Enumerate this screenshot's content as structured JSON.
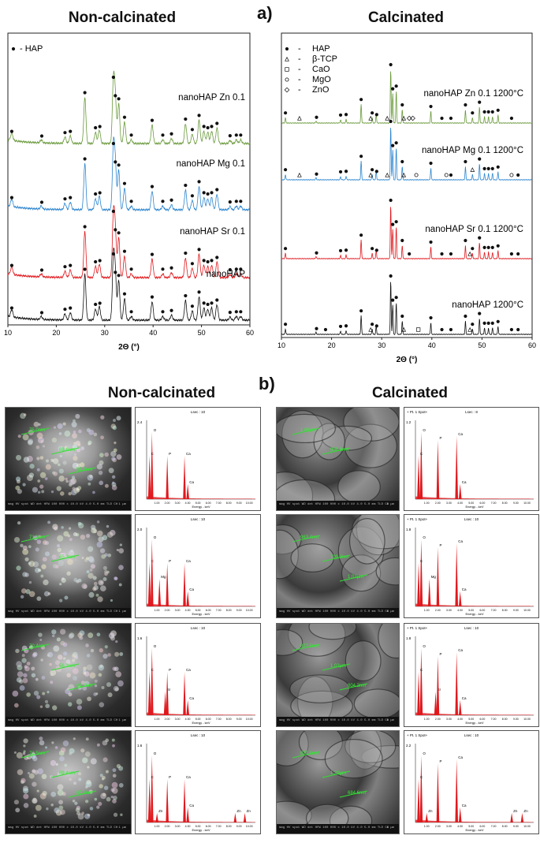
{
  "figure": {
    "panel_a_label": "a)",
    "panel_b_label": "b)",
    "left_heading": "Non-calcinated",
    "right_heading": "Calcinated"
  },
  "colors": {
    "black": "#111111",
    "red": "#e0191e",
    "blue": "#2e86cf",
    "green": "#6a9a3c"
  },
  "chart_data": [
    {
      "type": "line",
      "panel": "a-left",
      "xlabel": "2Θ (°)",
      "ylabel": "",
      "xlim": [
        10,
        60
      ],
      "xticks": [
        10,
        20,
        30,
        40,
        50,
        60
      ],
      "legend": {
        "placement": "top-left",
        "entries": [
          {
            "marker": "●",
            "label": "- HAP"
          }
        ]
      },
      "series": [
        {
          "name": "nanoHAP Zn 0.1",
          "color": "#6a9a3c",
          "hap_markers": [
            10.8,
            17,
            21.8,
            22.9,
            25.9,
            28.1,
            29,
            31.8,
            32.2,
            32.9,
            34.1,
            35.5,
            39.8,
            42,
            43.8,
            46.7,
            48.1,
            49.5,
            50.5,
            51.3,
            52.1,
            53.2,
            55.9,
            57.2,
            58.1
          ]
        },
        {
          "name": "nanoHAP Mg 0.1",
          "color": "#2e86cf",
          "hap_markers": [
            10.8,
            17,
            21.8,
            22.9,
            25.9,
            28.1,
            29,
            31.8,
            32.2,
            32.9,
            34.1,
            35.5,
            39.8,
            42,
            43.8,
            46.7,
            48.1,
            49.5,
            50.5,
            51.3,
            52.1,
            53.2,
            55.9,
            57.2,
            58.1
          ]
        },
        {
          "name": "nanoHAP Sr 0.1",
          "color": "#e0191e",
          "hap_markers": [
            10.8,
            17,
            21.8,
            22.9,
            25.9,
            28.1,
            29,
            31.8,
            32.2,
            32.9,
            34.1,
            35.5,
            39.8,
            42,
            43.8,
            46.7,
            48.1,
            49.5,
            50.5,
            51.3,
            52.1,
            53.2,
            55.9,
            57.2,
            58.1
          ]
        },
        {
          "name": "nanoHAP",
          "color": "#111111",
          "hap_markers": [
            10.8,
            17,
            21.8,
            22.9,
            25.9,
            28.1,
            29,
            31.8,
            32.2,
            32.9,
            34.1,
            35.5,
            39.8,
            42,
            43.8,
            46.7,
            48.1,
            49.5,
            50.5,
            51.3,
            52.1,
            53.2,
            55.9,
            57.2,
            58.1
          ]
        }
      ],
      "peaks": [
        {
          "x": 10.8,
          "i": 0.12
        },
        {
          "x": 16.9,
          "i": 0.05
        },
        {
          "x": 21.8,
          "i": 0.1
        },
        {
          "x": 22.9,
          "i": 0.12
        },
        {
          "x": 25.9,
          "i": 0.75
        },
        {
          "x": 28.1,
          "i": 0.18
        },
        {
          "x": 28.9,
          "i": 0.22
        },
        {
          "x": 31.8,
          "i": 1.0
        },
        {
          "x": 32.2,
          "i": 0.7
        },
        {
          "x": 32.9,
          "i": 0.65
        },
        {
          "x": 34.1,
          "i": 0.35
        },
        {
          "x": 35.5,
          "i": 0.06
        },
        {
          "x": 39.8,
          "i": 0.3
        },
        {
          "x": 42.0,
          "i": 0.06
        },
        {
          "x": 43.8,
          "i": 0.08
        },
        {
          "x": 46.7,
          "i": 0.32
        },
        {
          "x": 48.1,
          "i": 0.15
        },
        {
          "x": 49.5,
          "i": 0.38
        },
        {
          "x": 50.5,
          "i": 0.2
        },
        {
          "x": 51.3,
          "i": 0.18
        },
        {
          "x": 52.1,
          "i": 0.2
        },
        {
          "x": 53.2,
          "i": 0.25
        },
        {
          "x": 55.9,
          "i": 0.05
        },
        {
          "x": 57.2,
          "i": 0.06
        },
        {
          "x": 58.1,
          "i": 0.06
        }
      ]
    },
    {
      "type": "line",
      "panel": "a-right",
      "xlabel": "2Θ (°)",
      "ylabel": "",
      "xlim": [
        10,
        60
      ],
      "xticks": [
        10,
        20,
        30,
        40,
        50,
        60
      ],
      "legend": {
        "placement": "top-left",
        "entries": [
          {
            "marker": "●",
            "dash": "-",
            "label": "HAP"
          },
          {
            "marker": "△",
            "dash": "-",
            "label": "β-TCP"
          },
          {
            "marker": "□",
            "dash": "-",
            "label": "CaO"
          },
          {
            "marker": "○",
            "dash": "-",
            "label": "MgO"
          },
          {
            "marker": "◇",
            "dash": "-",
            "label": "ZnO"
          }
        ]
      },
      "series": [
        {
          "name": "nanoHAP Zn 0.1 1200°C",
          "color": "#6a9a3c",
          "markers": [
            {
              "x": 10.8,
              "m": "●"
            },
            {
              "x": 13.6,
              "m": "△"
            },
            {
              "x": 17,
              "m": "●"
            },
            {
              "x": 21.8,
              "m": "●"
            },
            {
              "x": 22.9,
              "m": "●"
            },
            {
              "x": 25.9,
              "m": "●"
            },
            {
              "x": 27.8,
              "m": "△"
            },
            {
              "x": 28.1,
              "m": "●"
            },
            {
              "x": 29,
              "m": "●"
            },
            {
              "x": 31.1,
              "m": "△"
            },
            {
              "x": 31.8,
              "m": "●"
            },
            {
              "x": 32.2,
              "m": "●"
            },
            {
              "x": 32.9,
              "m": "●"
            },
            {
              "x": 34.1,
              "m": "●"
            },
            {
              "x": 34.4,
              "m": "△"
            },
            {
              "x": 35.5,
              "m": "◇"
            },
            {
              "x": 36.2,
              "m": "◇"
            },
            {
              "x": 39.8,
              "m": "●"
            },
            {
              "x": 42,
              "m": "●"
            },
            {
              "x": 43.8,
              "m": "●"
            },
            {
              "x": 46.7,
              "m": "●"
            },
            {
              "x": 48.1,
              "m": "●"
            },
            {
              "x": 49.5,
              "m": "●"
            },
            {
              "x": 50.5,
              "m": "●"
            },
            {
              "x": 51.3,
              "m": "●"
            },
            {
              "x": 52.1,
              "m": "●"
            },
            {
              "x": 53.2,
              "m": "●"
            },
            {
              "x": 55.9,
              "m": "●"
            }
          ]
        },
        {
          "name": "nanoHAP Mg 0.1 1200°C",
          "color": "#2e86cf",
          "markers": [
            {
              "x": 10.8,
              "m": "●"
            },
            {
              "x": 13.6,
              "m": "△"
            },
            {
              "x": 17,
              "m": "●"
            },
            {
              "x": 21.8,
              "m": "●"
            },
            {
              "x": 22.9,
              "m": "●"
            },
            {
              "x": 25.9,
              "m": "●"
            },
            {
              "x": 27.8,
              "m": "△"
            },
            {
              "x": 28.1,
              "m": "●"
            },
            {
              "x": 29,
              "m": "●"
            },
            {
              "x": 31.1,
              "m": "△"
            },
            {
              "x": 31.8,
              "m": "●"
            },
            {
              "x": 32.2,
              "m": "●"
            },
            {
              "x": 32.9,
              "m": "●"
            },
            {
              "x": 34.1,
              "m": "●"
            },
            {
              "x": 34.4,
              "m": "△"
            },
            {
              "x": 36.9,
              "m": "○"
            },
            {
              "x": 39.8,
              "m": "●"
            },
            {
              "x": 42.9,
              "m": "○"
            },
            {
              "x": 43.8,
              "m": "●"
            },
            {
              "x": 46.7,
              "m": "●"
            },
            {
              "x": 48.1,
              "m": "△"
            },
            {
              "x": 49.5,
              "m": "●"
            },
            {
              "x": 50.5,
              "m": "●"
            },
            {
              "x": 51.3,
              "m": "●"
            },
            {
              "x": 52.1,
              "m": "●"
            },
            {
              "x": 53.2,
              "m": "●"
            },
            {
              "x": 55.9,
              "m": "○"
            },
            {
              "x": 57.2,
              "m": "●"
            }
          ]
        },
        {
          "name": "nanoHAP Sr 0.1 1200°C",
          "color": "#e0191e",
          "markers": [
            {
              "x": 10.8,
              "m": "●"
            },
            {
              "x": 17,
              "m": "●"
            },
            {
              "x": 21.8,
              "m": "●"
            },
            {
              "x": 22.9,
              "m": "●"
            },
            {
              "x": 25.9,
              "m": "●"
            },
            {
              "x": 28.1,
              "m": "●"
            },
            {
              "x": 29,
              "m": "●"
            },
            {
              "x": 31.8,
              "m": "●"
            },
            {
              "x": 32.2,
              "m": "●"
            },
            {
              "x": 32.9,
              "m": "●"
            },
            {
              "x": 34.1,
              "m": "●"
            },
            {
              "x": 35.5,
              "m": "●"
            },
            {
              "x": 39.8,
              "m": "●"
            },
            {
              "x": 42,
              "m": "●"
            },
            {
              "x": 43.8,
              "m": "●"
            },
            {
              "x": 46.7,
              "m": "●"
            },
            {
              "x": 47.6,
              "m": "△"
            },
            {
              "x": 48.1,
              "m": "●"
            },
            {
              "x": 49.5,
              "m": "●"
            },
            {
              "x": 50.5,
              "m": "●"
            },
            {
              "x": 51.3,
              "m": "●"
            },
            {
              "x": 52.1,
              "m": "●"
            },
            {
              "x": 53.2,
              "m": "●"
            },
            {
              "x": 55.9,
              "m": "●"
            },
            {
              "x": 57.2,
              "m": "●"
            }
          ]
        },
        {
          "name": "nanoHAP 1200°C",
          "color": "#111111",
          "markers": [
            {
              "x": 10.8,
              "m": "●"
            },
            {
              "x": 17,
              "m": "●"
            },
            {
              "x": 18.8,
              "m": "●"
            },
            {
              "x": 21.8,
              "m": "●"
            },
            {
              "x": 22.9,
              "m": "●"
            },
            {
              "x": 25.9,
              "m": "●"
            },
            {
              "x": 27.8,
              "m": "△"
            },
            {
              "x": 28.1,
              "m": "●"
            },
            {
              "x": 29,
              "m": "●"
            },
            {
              "x": 31.8,
              "m": "●"
            },
            {
              "x": 32.2,
              "m": "●"
            },
            {
              "x": 32.9,
              "m": "●"
            },
            {
              "x": 34.1,
              "m": "●"
            },
            {
              "x": 34.4,
              "m": "△"
            },
            {
              "x": 37.3,
              "m": "□"
            },
            {
              "x": 39.8,
              "m": "●"
            },
            {
              "x": 42,
              "m": "●"
            },
            {
              "x": 43.8,
              "m": "●"
            },
            {
              "x": 46.7,
              "m": "●"
            },
            {
              "x": 47.6,
              "m": "△"
            },
            {
              "x": 48.1,
              "m": "●"
            },
            {
              "x": 49.5,
              "m": "●"
            },
            {
              "x": 50.5,
              "m": "●"
            },
            {
              "x": 51.3,
              "m": "●"
            },
            {
              "x": 52.1,
              "m": "●"
            },
            {
              "x": 53.2,
              "m": "●"
            },
            {
              "x": 55.9,
              "m": "●"
            },
            {
              "x": 57.2,
              "m": "●"
            }
          ]
        }
      ],
      "peaks": [
        {
          "x": 10.8,
          "i": 0.1
        },
        {
          "x": 16.9,
          "i": 0.04
        },
        {
          "x": 21.8,
          "i": 0.06
        },
        {
          "x": 22.9,
          "i": 0.07
        },
        {
          "x": 25.9,
          "i": 0.35
        },
        {
          "x": 28.1,
          "i": 0.1
        },
        {
          "x": 28.9,
          "i": 0.15
        },
        {
          "x": 31.8,
          "i": 1.0
        },
        {
          "x": 32.2,
          "i": 0.55
        },
        {
          "x": 32.9,
          "i": 0.6
        },
        {
          "x": 34.1,
          "i": 0.25
        },
        {
          "x": 39.8,
          "i": 0.22
        },
        {
          "x": 46.7,
          "i": 0.25
        },
        {
          "x": 48.1,
          "i": 0.1
        },
        {
          "x": 49.5,
          "i": 0.3
        },
        {
          "x": 50.5,
          "i": 0.12
        },
        {
          "x": 51.3,
          "i": 0.12
        },
        {
          "x": 52.1,
          "i": 0.12
        },
        {
          "x": 53.2,
          "i": 0.15
        }
      ]
    }
  ],
  "sem": {
    "scale_label": "1 μm",
    "info_text": "mag  HV  spot  WD  det  HFW  100 000 x  10.0 kV  4.0  5.0 mm  TLD  CH",
    "noncalcinated": [
      "nanoHAP Zn 0.1",
      "nanoHAP Mg 0.1",
      "nanoHAP Sr 0.1",
      "nanoHAP"
    ],
    "calcinated_sizes": [
      [
        "1.08μm",
        "908.9nm"
      ],
      [
        "963.4nm",
        "709.0nm",
        "1.03μm"
      ],
      [
        "877.0nm",
        "1.03μm",
        "804.2nm"
      ],
      [
        "877.0nm",
        "1.29μm",
        "684.6nm"
      ]
    ],
    "noncalcinated_sizes": [
      [
        "75.0nm",
        "68.6nm",
        "58.2nm"
      ],
      [
        "71.2nm",
        "65.3nm"
      ],
      [
        "70.4nm",
        "56.3nm",
        "61.0nm"
      ],
      [
        "72.5nm",
        "69.4nm",
        "60.1nm"
      ]
    ]
  },
  "eds": {
    "title_left": "Lsec : 10",
    "xlabel": "Energy - keV",
    "xticks": [
      "1.00",
      "2.00",
      "3.00",
      "4.00",
      "5.00",
      "6.00",
      "7.00",
      "8.00",
      "9.00",
      "10.00"
    ],
    "spectra": [
      {
        "panel": "Zn non-calcinated",
        "header": "",
        "title": "Lsec : 10",
        "ymax_label": "2.4",
        "labels": [
          "O",
          "C",
          "P",
          "Ca",
          "Ca"
        ]
      },
      {
        "panel": "Zn calcinated",
        "header": "+ Pt. 1 Spot+",
        "title": "Lsec : 8",
        "ymax_label": "1.2",
        "labels": [
          "O",
          "C",
          "P",
          "Ca",
          "Ca"
        ]
      },
      {
        "panel": "Mg non-calcinated",
        "header": "",
        "title": "Lsec : 10",
        "ymax_label": "2.0",
        "labels": [
          "C",
          "O",
          "Mg",
          "P",
          "Ca",
          "Ca"
        ]
      },
      {
        "panel": "Mg calcinated",
        "header": "+ Pt. 1 Spot+",
        "title": "Lsec : 10",
        "ymax_label": "1.8",
        "labels": [
          "O",
          "C",
          "Mg",
          "P",
          "Ca",
          "Ca"
        ]
      },
      {
        "panel": "Sr non-calcinated",
        "header": "",
        "title": "Lsec : 10",
        "ymax_label": "1.6",
        "labels": [
          "O",
          "C",
          "Sr",
          "P",
          "Ca",
          "Ca"
        ]
      },
      {
        "panel": "Sr calcinated",
        "header": "+ Pt. 1 Spot+",
        "title": "Lsec : 10",
        "ymax_label": "1.8",
        "labels": [
          "O",
          "C",
          "Sr",
          "P",
          "Ca",
          "Ca"
        ]
      },
      {
        "panel": "nanoHAP non-calcinated",
        "header": "",
        "title": "Lsec : 10",
        "ymax_label": "1.6",
        "labels": [
          "O",
          "C",
          "Zn",
          "P",
          "Ca",
          "Ca",
          "Zn",
          "Zn"
        ]
      },
      {
        "panel": "nanoHAP calcinated",
        "header": "+ Pt. 1 Spot+",
        "title": "Lsec : 10",
        "ymax_label": "2.2",
        "labels": [
          "O",
          "C",
          "Zn",
          "P",
          "Ca",
          "Ca",
          "Zn",
          "Zn"
        ]
      }
    ]
  }
}
